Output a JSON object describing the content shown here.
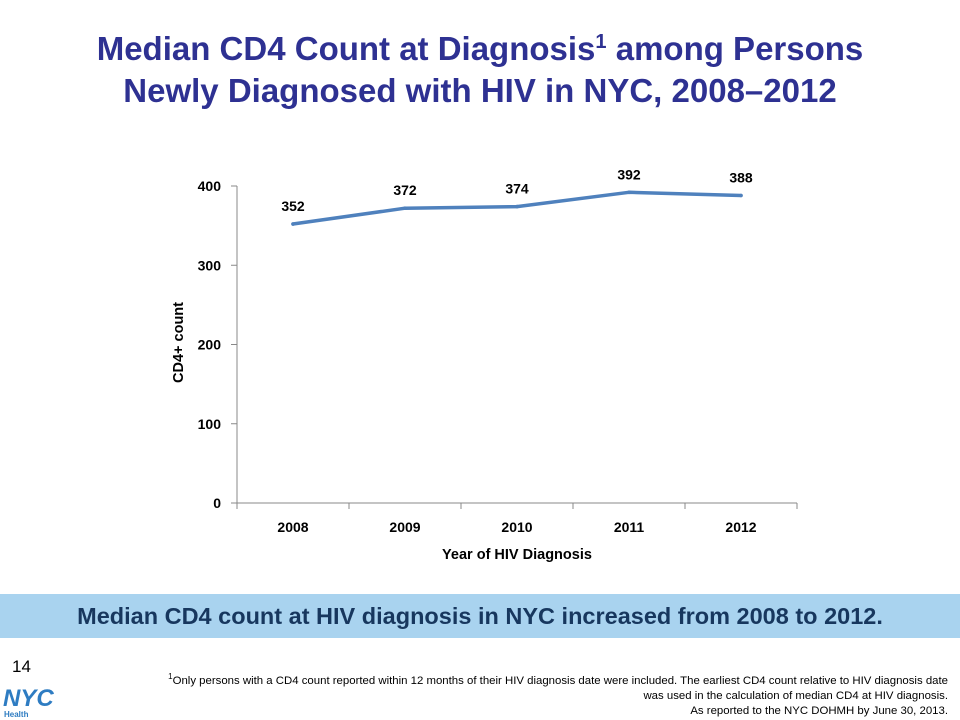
{
  "title": {
    "line1_part1": "Median CD4 Count at Diagnosis",
    "superscript": "1",
    "line1_part2": " among Persons",
    "line2": "Newly Diagnosed with HIV in NYC, 2008–2012"
  },
  "chart_data": {
    "type": "line",
    "x": [
      "2008",
      "2009",
      "2010",
      "2011",
      "2012"
    ],
    "series": [
      {
        "values": [
          352,
          372,
          374,
          392,
          388
        ]
      }
    ],
    "data_labels": [
      "352",
      "372",
      "374",
      "392",
      "388"
    ],
    "xlabel": "Year of HIV Diagnosis",
    "ylabel": "CD4+ count",
    "ylim": [
      0,
      400
    ],
    "yticks": [
      0,
      100,
      200,
      300,
      400
    ],
    "grid": false,
    "line_color": "#4F81BD"
  },
  "banner": {
    "text": "Median CD4 count at HIV diagnosis in NYC increased from 2008 to 2012."
  },
  "page_number": "14",
  "footnote": {
    "marker": "1",
    "line1": "Only persons with a CD4 count reported within 12 months of their HIV diagnosis date were included. The earliest CD4 count relative to HIV diagnosis date",
    "line2": "was used in the calculation of median CD4 at HIV diagnosis.",
    "line3": "As reported to the NYC DOHMH by June 30, 2013."
  },
  "logo": {
    "text": "NYC",
    "subtext": "Health"
  },
  "colors": {
    "title": "#2E3192",
    "banner_bg": "#A9D3EF",
    "banner_text": "#17375E",
    "logo": "#2E7CC2"
  }
}
